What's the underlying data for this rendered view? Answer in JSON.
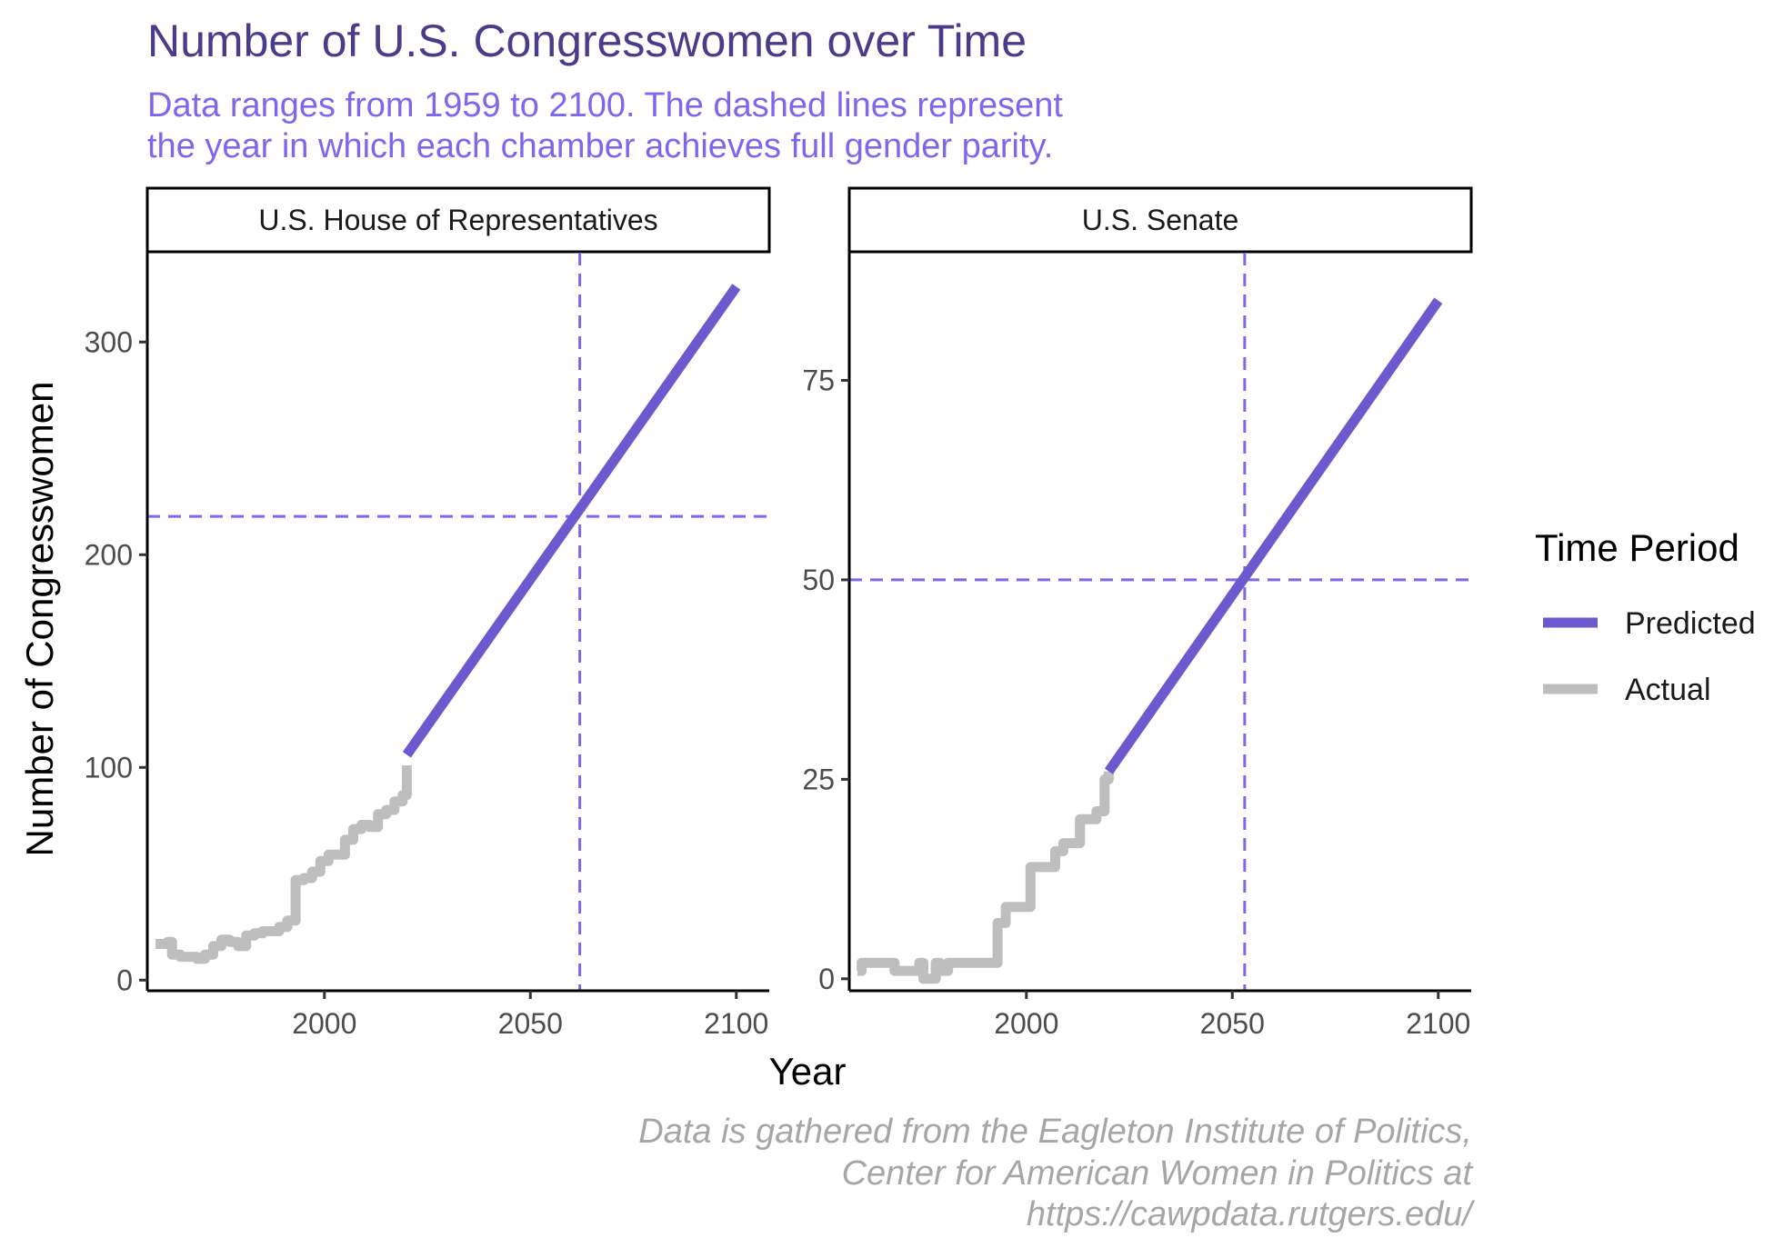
{
  "title": "Number of U.S. Congresswomen over Time",
  "subtitle_lines": [
    "Data ranges from 1959 to 2100. The dashed lines represent",
    "the year in which each chamber achieves full gender parity."
  ],
  "caption_lines": [
    "Data is gathered from the Eagleton Institute of Politics,",
    "Center for American Women in Politics at",
    "https://cawpdata.rutgers.edu/"
  ],
  "colors": {
    "predicted": "#6A5ACD",
    "actual": "#BEBEBE",
    "reference": "#7B68EE",
    "title": "#483D8B",
    "subtitle": "#7B68EE"
  },
  "chart_data": [
    {
      "type": "line",
      "panel": "U.S. House of Representatives",
      "xlabel": "Year",
      "ylabel": "Number of Congresswomen",
      "xlim": [
        1957,
        2108
      ],
      "ylim": [
        -5,
        342
      ],
      "x_ticks": [
        2000,
        2050,
        2100
      ],
      "y_ticks": [
        0,
        100,
        200,
        300
      ],
      "grid": false,
      "parity": {
        "year": 2062,
        "value": 218
      },
      "series": [
        {
          "name": "Actual",
          "x": [
            1959,
            1961,
            1962,
            1963,
            1965,
            1967,
            1969,
            1971,
            1973,
            1975,
            1977,
            1979,
            1981,
            1983,
            1985,
            1987,
            1989,
            1991,
            1993,
            1995,
            1997,
            1999,
            2001,
            2003,
            2005,
            2007,
            2009,
            2011,
            2013,
            2015,
            2017,
            2019,
            2020
          ],
          "y": [
            17,
            17,
            18,
            12,
            11,
            11,
            10,
            12,
            16,
            19,
            18,
            16,
            21,
            22,
            23,
            23,
            25,
            28,
            47,
            48,
            51,
            56,
            59,
            59,
            66,
            71,
            73,
            72,
            78,
            80,
            84,
            87,
            101
          ]
        },
        {
          "name": "Predicted",
          "x": [
            2020,
            2100
          ],
          "y": [
            106,
            326
          ]
        }
      ]
    },
    {
      "type": "line",
      "panel": "U.S. Senate",
      "xlabel": "Year",
      "ylabel": "Number of Congresswomen",
      "xlim": [
        1957,
        2108
      ],
      "ylim": [
        -1.5,
        91
      ],
      "x_ticks": [
        2000,
        2050,
        2100
      ],
      "y_ticks": [
        0,
        25,
        50,
        75
      ],
      "grid": false,
      "parity": {
        "year": 2053,
        "value": 50
      },
      "series": [
        {
          "name": "Actual",
          "x": [
            1959,
            1960,
            1961,
            1967,
            1968,
            1969,
            1973,
            1974,
            1975,
            1976,
            1977,
            1978,
            1979,
            1981,
            1987,
            1989,
            1991,
            1993,
            1995,
            1997,
            1999,
            2001,
            2003,
            2005,
            2007,
            2009,
            2011,
            2013,
            2015,
            2017,
            2019,
            2020
          ],
          "y": [
            1,
            2,
            2,
            2,
            1,
            1,
            1,
            2,
            0,
            0,
            0,
            2,
            1,
            2,
            2,
            2,
            2,
            7,
            9,
            9,
            9,
            14,
            14,
            14,
            16,
            17,
            17,
            20,
            20,
            21,
            25,
            26
          ]
        },
        {
          "name": "Predicted",
          "x": [
            2020,
            2100
          ],
          "y": [
            26,
            85
          ]
        }
      ]
    }
  ],
  "legend": {
    "title": "Time Period",
    "items": [
      {
        "label": "Predicted",
        "color_key": "predicted"
      },
      {
        "label": "Actual",
        "color_key": "actual"
      }
    ]
  }
}
